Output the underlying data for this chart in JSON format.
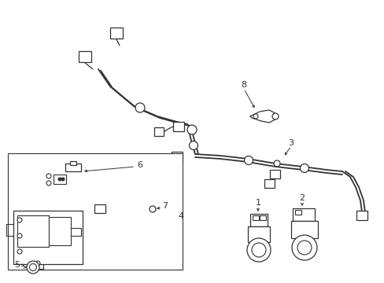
{
  "background_color": "#ffffff",
  "line_color": "#333333",
  "fig_width": 4.89,
  "fig_height": 3.6,
  "dpi": 100,
  "xlim": [
    0,
    489
  ],
  "ylim": [
    0,
    360
  ]
}
